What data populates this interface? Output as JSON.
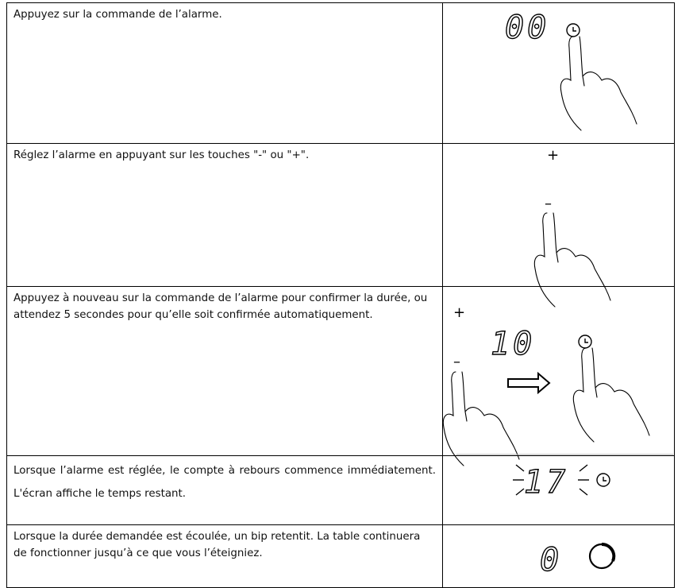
{
  "rows": [
    {
      "text": "Appuyez sur la commande de l’alarme.",
      "display": "00"
    },
    {
      "text": "Réglez l’alarme en appuyant sur les touches \"-\" ou \"+\".",
      "plus": "+",
      "minus": "–"
    },
    {
      "text": "Appuyez à nouveau sur la commande de l’alarme pour confirmer la durée, ou attendez 5 secondes pour qu’elle soit confirmée automatiquement.",
      "plus": "+",
      "minus": "–",
      "display": "10"
    },
    {
      "text": "Lorsque l’alarme est réglée, le compte à rebours commence immédiatement. L'écran affiche le temps restant.",
      "display": "17"
    },
    {
      "text": "Lorsque la durée demandée est écoulée, un bip retentit. La table continuera de fonctionner jusqu’à ce que vous l’éteigniez.",
      "display": "0"
    }
  ]
}
